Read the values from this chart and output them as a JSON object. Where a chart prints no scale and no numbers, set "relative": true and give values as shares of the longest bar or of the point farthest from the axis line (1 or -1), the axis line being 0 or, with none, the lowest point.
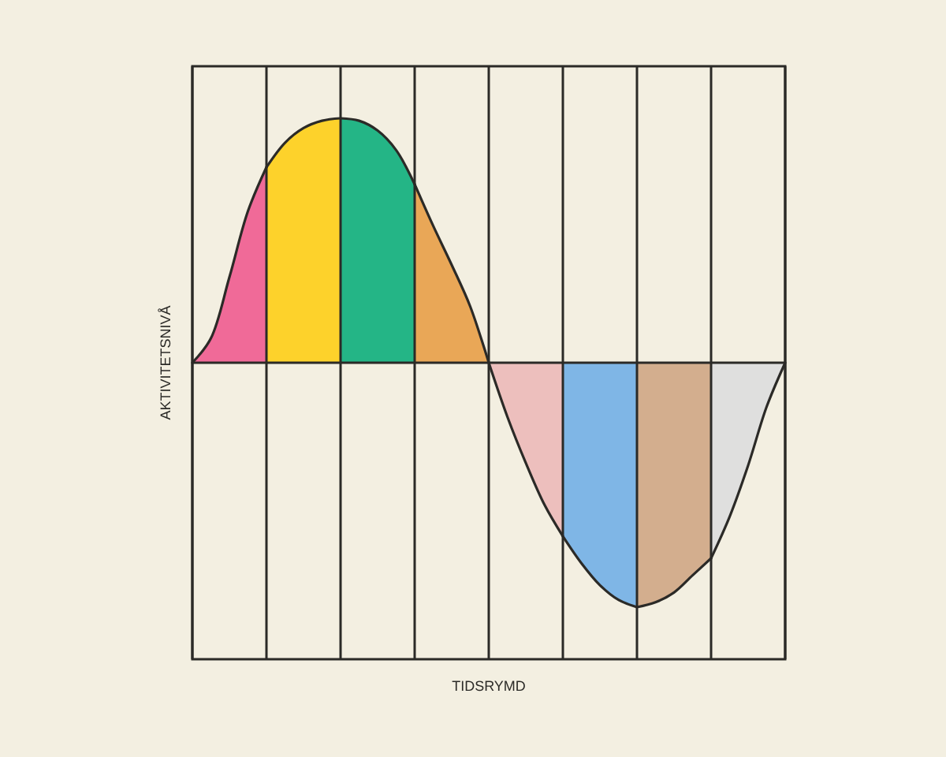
{
  "chart_data": {
    "type": "area",
    "xlabel": "TIDSRYMD",
    "ylabel": "AKTIVITETSNIVÅ",
    "relative": true,
    "grid": "x",
    "categories": [
      null,
      null,
      null,
      null,
      null,
      null,
      null,
      null,
      null,
      null,
      null,
      null,
      null,
      null,
      null,
      null,
      null,
      null,
      null,
      null,
      null,
      null,
      null,
      null,
      null,
      null,
      null,
      null,
      null,
      null,
      null,
      null,
      null
    ],
    "series": [
      {
        "color": "#f06a98",
        "values": [
          0,
          0.1,
          0.35,
          0.62,
          0.8,
          null,
          null,
          null,
          null,
          null,
          null,
          null,
          null,
          null,
          null,
          null,
          null,
          null,
          null,
          null,
          null,
          null,
          null,
          null,
          null,
          null,
          null,
          null,
          null,
          null,
          null,
          null,
          null
        ]
      },
      {
        "color": "#fdd22b",
        "values": [
          null,
          null,
          null,
          null,
          0.8,
          0.9,
          0.96,
          0.99,
          1,
          null,
          null,
          null,
          null,
          null,
          null,
          null,
          null,
          null,
          null,
          null,
          null,
          null,
          null,
          null,
          null,
          null,
          null,
          null,
          null,
          null,
          null,
          null,
          null
        ]
      },
      {
        "color": "#24b586",
        "values": [
          null,
          null,
          null,
          null,
          null,
          null,
          null,
          null,
          1,
          0.99,
          0.95,
          0.87,
          0.73,
          null,
          null,
          null,
          null,
          null,
          null,
          null,
          null,
          null,
          null,
          null,
          null,
          null,
          null,
          null,
          null,
          null,
          null,
          null,
          null
        ]
      },
      {
        "color": "#e9a757",
        "values": [
          null,
          null,
          null,
          null,
          null,
          null,
          null,
          null,
          null,
          null,
          null,
          null,
          0.73,
          0.56,
          0.4,
          0.23,
          0,
          null,
          null,
          null,
          null,
          null,
          null,
          null,
          null,
          null,
          null,
          null,
          null,
          null,
          null,
          null,
          null
        ]
      },
      {
        "color": "#edbfbd",
        "values": [
          null,
          null,
          null,
          null,
          null,
          null,
          null,
          null,
          null,
          null,
          null,
          null,
          null,
          null,
          null,
          null,
          0,
          -0.22,
          -0.41,
          -0.58,
          -0.71,
          null,
          null,
          null,
          null,
          null,
          null,
          null,
          null,
          null,
          null,
          null,
          null
        ]
      },
      {
        "color": "#7fb6e6",
        "values": [
          null,
          null,
          null,
          null,
          null,
          null,
          null,
          null,
          null,
          null,
          null,
          null,
          null,
          null,
          null,
          null,
          null,
          null,
          null,
          null,
          -0.71,
          -0.82,
          -0.91,
          -0.97,
          -1,
          null,
          null,
          null,
          null,
          null,
          null,
          null,
          null
        ]
      },
      {
        "color": "#d3ae8e",
        "values": [
          null,
          null,
          null,
          null,
          null,
          null,
          null,
          null,
          null,
          null,
          null,
          null,
          null,
          null,
          null,
          null,
          null,
          null,
          null,
          null,
          null,
          null,
          null,
          null,
          -1,
          -0.98,
          -0.94,
          -0.87,
          -0.8,
          null,
          null,
          null,
          null
        ]
      },
      {
        "color": "#dfdfde",
        "values": [
          null,
          null,
          null,
          null,
          null,
          null,
          null,
          null,
          null,
          null,
          null,
          null,
          null,
          null,
          null,
          null,
          null,
          null,
          null,
          null,
          null,
          null,
          null,
          null,
          null,
          null,
          null,
          null,
          -0.8,
          -0.63,
          -0.42,
          -0.18,
          0
        ]
      }
    ]
  }
}
